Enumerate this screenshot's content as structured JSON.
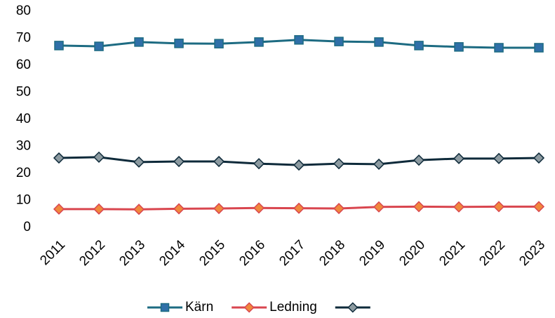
{
  "chart_data": {
    "type": "line",
    "categories": [
      "2011",
      "2012",
      "2013",
      "2014",
      "2015",
      "2016",
      "2017",
      "2018",
      "2019",
      "2020",
      "2021",
      "2022",
      "2023"
    ],
    "series": [
      {
        "name": "Kärn",
        "color": "#1d6b82",
        "marker_color": "#2f6fa8",
        "marker": "square",
        "values": [
          67.3,
          67.0,
          68.6,
          68.1,
          68.0,
          68.6,
          69.4,
          68.8,
          68.6,
          67.3,
          66.8,
          66.5,
          66.5
        ]
      },
      {
        "name": "Ledning",
        "color": "#d9464f",
        "marker_color": "#f0883c",
        "marker": "diamond",
        "values": [
          6.8,
          6.8,
          6.7,
          6.9,
          7.0,
          7.2,
          7.1,
          7.0,
          7.6,
          7.7,
          7.6,
          7.7,
          7.7
        ]
      },
      {
        "color": "#0e2a3a",
        "marker_color": "#8c9aa0",
        "marker": "diamond",
        "values": [
          25.7,
          26.0,
          24.2,
          24.4,
          24.4,
          23.6,
          23.1,
          23.6,
          23.4,
          24.9,
          25.5,
          25.5,
          25.7
        ]
      }
    ],
    "ylim": [
      0,
      80
    ],
    "yticks": [
      0,
      10,
      20,
      30,
      40,
      50,
      60,
      70,
      80
    ],
    "grid": false,
    "legend": "bottom"
  }
}
